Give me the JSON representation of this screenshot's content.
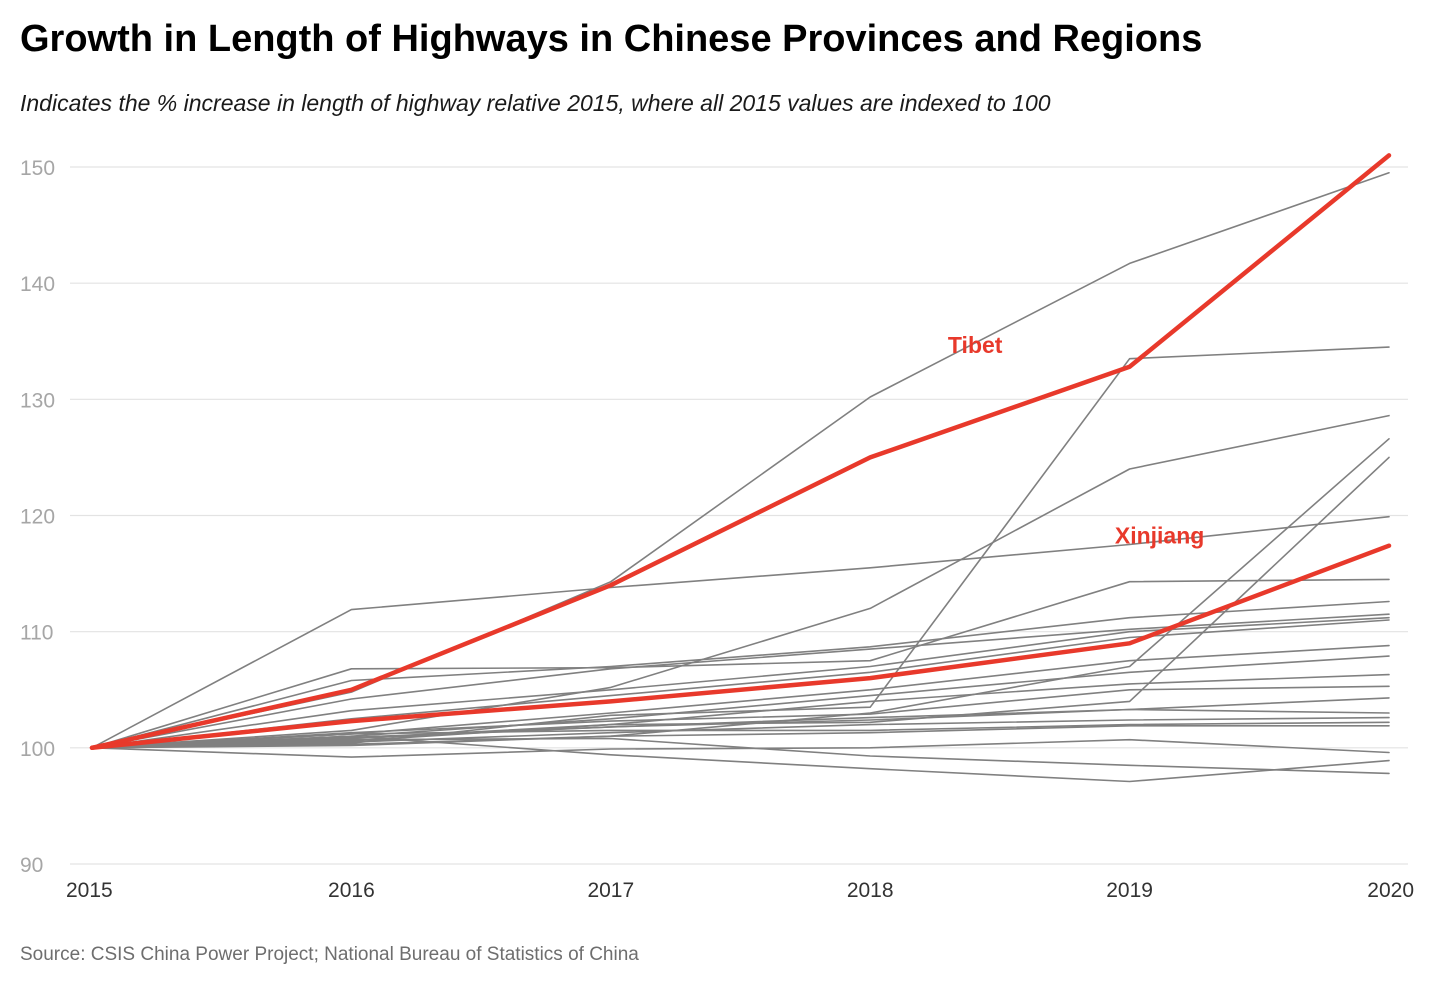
{
  "header": {
    "title": "Growth in Length of Highways in Chinese Provinces and Regions",
    "subtitle": "Indicates the % increase in length of highway relative 2015, where all 2015 values are indexed to 100"
  },
  "footer": {
    "source": "Source: CSIS China Power Project; National Bureau of Statistics of China"
  },
  "colors": {
    "highlight": "#e8392b",
    "other": "#808080",
    "grid": "#e3e3e3"
  },
  "chart_data": {
    "type": "line",
    "title": "Growth in Length of Highways in Chinese Provinces and Regions",
    "subtitle": "Indicates the % increase in length of highway relative 2015, where all 2015 values are indexed to 100",
    "xlabel": "",
    "ylabel": "",
    "x": [
      "2015",
      "2016",
      "2017",
      "2018",
      "2019",
      "2020"
    ],
    "ylim": [
      90,
      152
    ],
    "yticks": [
      90,
      100,
      110,
      120,
      130,
      140,
      150
    ],
    "grid": true,
    "legend": "none",
    "annotations": [
      {
        "text": "Tibet",
        "series": "Tibet",
        "x": "2018",
        "y": 134
      },
      {
        "text": "Xinjiang",
        "series": "Xinjiang",
        "x": "2019",
        "y": 117.6
      }
    ],
    "highlighted_series": [
      {
        "name": "Tibet",
        "values": [
          100,
          105.0,
          114.0,
          125.0,
          132.8,
          151.0
        ]
      },
      {
        "name": "Xinjiang",
        "values": [
          100,
          102.3,
          104.0,
          106.0,
          109.0,
          117.4
        ]
      }
    ],
    "other_series": [
      {
        "values": [
          100,
          104.8,
          114.3,
          130.2,
          141.7,
          149.5
        ]
      },
      {
        "values": [
          100,
          100.4,
          102.8,
          103.5,
          133.5,
          134.5
        ]
      },
      {
        "values": [
          100,
          101.5,
          105.2,
          112.0,
          124.0,
          128.6
        ]
      },
      {
        "values": [
          100,
          100.2,
          101.0,
          103.0,
          107.0,
          126.6
        ]
      },
      {
        "values": [
          100,
          100.8,
          102.0,
          102.2,
          104.0,
          125.0
        ]
      },
      {
        "values": [
          100,
          111.9,
          113.8,
          115.5,
          117.5,
          119.9
        ]
      },
      {
        "values": [
          100,
          106.8,
          106.9,
          107.5,
          114.3,
          114.5
        ]
      },
      {
        "values": [
          100,
          105.8,
          107.0,
          108.7,
          111.2,
          112.6
        ]
      },
      {
        "values": [
          100,
          104.2,
          106.8,
          108.5,
          110.2,
          111.5
        ]
      },
      {
        "values": [
          100,
          103.2,
          105.0,
          107.0,
          110.0,
          111.2
        ]
      },
      {
        "values": [
          100,
          102.5,
          104.5,
          106.5,
          109.5,
          111.0
        ]
      },
      {
        "values": [
          100,
          101.2,
          103.0,
          105.0,
          107.5,
          108.8
        ]
      },
      {
        "values": [
          100,
          101.0,
          102.5,
          104.5,
          106.5,
          107.9
        ]
      },
      {
        "values": [
          100,
          100.6,
          102.0,
          104.0,
          105.5,
          106.3
        ]
      },
      {
        "values": [
          100,
          101.3,
          102.3,
          102.9,
          105.0,
          105.3
        ]
      },
      {
        "values": [
          100,
          100.8,
          101.8,
          102.6,
          103.3,
          104.3
        ]
      },
      {
        "values": [
          100,
          100.9,
          101.8,
          102.4,
          103.3,
          103.0
        ]
      },
      {
        "values": [
          100,
          100.5,
          101.3,
          102.0,
          102.4,
          102.6
        ]
      },
      {
        "values": [
          100,
          101.2,
          101.5,
          101.5,
          102.0,
          102.2
        ]
      },
      {
        "values": [
          100,
          100.3,
          101.0,
          101.3,
          101.9,
          101.9
        ]
      },
      {
        "values": [
          100,
          99.2,
          99.9,
          100.0,
          100.7,
          99.6
        ]
      },
      {
        "values": [
          100,
          101.0,
          99.4,
          98.2,
          97.1,
          98.9
        ]
      },
      {
        "values": [
          100,
          100.7,
          100.8,
          99.3,
          98.5,
          97.8
        ]
      }
    ]
  }
}
